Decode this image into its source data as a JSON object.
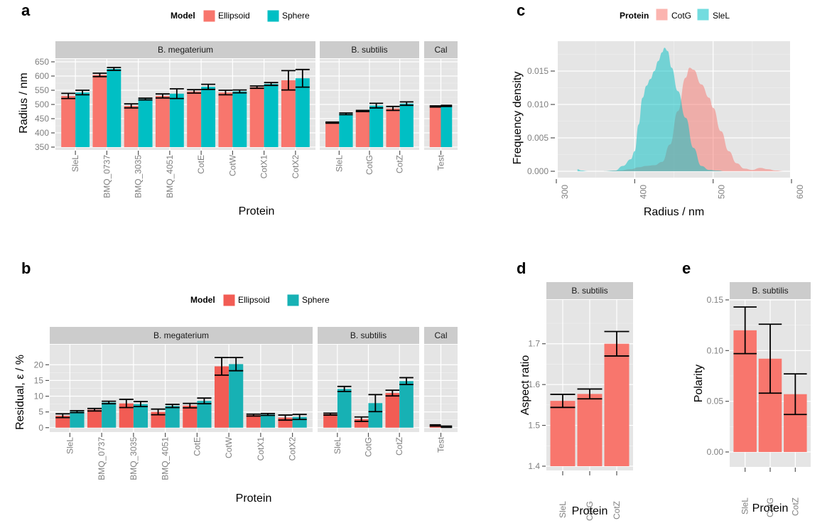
{
  "colors": {
    "ellipsoid": "#f8766d",
    "sphere": "#00bfc4",
    "ellipsoid_b": "#f25c54",
    "sphere_b": "#17b1b4",
    "panel_bg": "#e5e5e5",
    "strip_bg": "#cccccc",
    "cotg_density": "#f8766d",
    "slel_density": "#00bfc4"
  },
  "chart_data": [
    {
      "id": "a",
      "panel_label": "a",
      "type": "bar",
      "xlabel": "Protein",
      "ylabel": "Radius / nm",
      "ylim": [
        350,
        660
      ],
      "yticks": [
        350,
        400,
        450,
        500,
        550,
        600,
        650
      ],
      "legend": {
        "title": "Model",
        "entries": [
          "Ellipsoid",
          "Sphere"
        ],
        "position": "top"
      },
      "facets": [
        {
          "label": "B. megaterium",
          "categories": [
            "SleL",
            "BMQ_0737",
            "BMQ_3035",
            "BMQ_4051",
            "CotE",
            "CotW",
            "CotX1",
            "CotX2"
          ],
          "series": [
            {
              "name": "Ellipsoid",
              "values": [
                530,
                604,
                495,
                530,
                546,
                542,
                561,
                585
              ],
              "err": [
                9,
                6,
                7,
                7,
                6,
                8,
                4,
                34
              ]
            },
            {
              "name": "Sphere",
              "values": [
                542,
                625,
                519,
                538,
                562,
                546,
                572,
                592
              ],
              "err": [
                8,
                5,
                3,
                17,
                9,
                5,
                5,
                31
              ]
            }
          ]
        },
        {
          "label": "B. subtilis",
          "categories": [
            "SleL",
            "CotG",
            "CotZ"
          ],
          "series": [
            {
              "name": "Ellipsoid",
              "values": [
                436,
                477,
                486
              ],
              "err": [
                2,
                2,
                7
              ]
            },
            {
              "name": "Sphere",
              "values": [
                467,
                496,
                503
              ],
              "err": [
                3,
                8,
                6
              ]
            }
          ]
        },
        {
          "label": "Cal",
          "categories": [
            "Test"
          ],
          "series": [
            {
              "name": "Ellipsoid",
              "values": [
                493
              ],
              "err": [
                2
              ]
            },
            {
              "name": "Sphere",
              "values": [
                495
              ],
              "err": [
                2
              ]
            }
          ]
        }
      ]
    },
    {
      "id": "b",
      "panel_label": "b",
      "type": "bar",
      "xlabel": "Protein",
      "ylabel": "Residual, ε / %",
      "ylim": [
        -0.5,
        23
      ],
      "yticks": [
        0,
        5,
        10,
        15,
        20
      ],
      "legend": {
        "title": "Model",
        "entries": [
          "Ellipsoid",
          "Sphere"
        ],
        "position": "top"
      },
      "facets": [
        {
          "label": "B. megaterium",
          "categories": [
            "SleL",
            "BMQ_0737",
            "BMQ_3035",
            "BMQ_4051",
            "CotE",
            "CotW",
            "CotX1",
            "CotX2"
          ],
          "series": [
            {
              "name": "Ellipsoid",
              "values": [
                3.8,
                5.7,
                7.7,
                5.0,
                7.0,
                19.5,
                4.0,
                3.2
              ],
              "err": [
                0.6,
                0.4,
                1.3,
                0.9,
                0.7,
                2.8,
                0.3,
                0.8
              ]
            },
            {
              "name": "Sphere",
              "values": [
                5.1,
                8.0,
                7.5,
                6.9,
                8.5,
                20.2,
                4.2,
                3.4
              ],
              "err": [
                0.3,
                0.4,
                0.8,
                0.5,
                0.9,
                2.1,
                0.3,
                0.8
              ]
            }
          ]
        },
        {
          "label": "B. subtilis",
          "categories": [
            "SleL",
            "CotG",
            "CotZ"
          ],
          "series": [
            {
              "name": "Ellipsoid",
              "values": [
                4.3,
                2.7,
                11.0
              ],
              "err": [
                0.3,
                0.7,
                0.9
              ]
            },
            {
              "name": "Sphere",
              "values": [
                12.3,
                7.8,
                14.8
              ],
              "err": [
                0.8,
                2.7,
                1.1
              ]
            }
          ]
        },
        {
          "label": "Cal",
          "categories": [
            "Test"
          ],
          "series": [
            {
              "name": "Ellipsoid",
              "values": [
                0.7
              ],
              "err": [
                0.2
              ]
            },
            {
              "name": "Sphere",
              "values": [
                0.3
              ],
              "err": [
                0.2
              ]
            }
          ]
        }
      ]
    },
    {
      "id": "c",
      "panel_label": "c",
      "type": "area",
      "title": "",
      "xlabel": "Radius / nm",
      "ylabel": "Frequency density",
      "xlim": [
        300,
        600
      ],
      "ylim": [
        0,
        0.019
      ],
      "xticks": [
        300,
        400,
        500,
        600
      ],
      "yticks": [
        0.0,
        0.005,
        0.01,
        0.015
      ],
      "ytick_labels": [
        "0.000",
        "0.005",
        "0.010",
        "0.015"
      ],
      "legend": {
        "title": "Protein",
        "entries": [
          "CotG",
          "SleL"
        ],
        "position": "top"
      },
      "series": [
        {
          "name": "CotG",
          "x": [
            360,
            380,
            395,
            405,
            415,
            425,
            435,
            445,
            455,
            465,
            470,
            475,
            485,
            495,
            500,
            510,
            520,
            530,
            540,
            550,
            560,
            570,
            580,
            590
          ],
          "y": [
            0,
            0.0001,
            0.0003,
            0.0006,
            0.0008,
            0.0009,
            0.0014,
            0.004,
            0.009,
            0.014,
            0.0155,
            0.0152,
            0.013,
            0.011,
            0.0095,
            0.006,
            0.003,
            0.0012,
            0.0004,
            0.0002,
            0.0005,
            0.0003,
            0.0001,
            0
          ]
        },
        {
          "name": "SleL",
          "x": [
            327,
            332,
            340,
            360,
            375,
            385,
            395,
            400,
            405,
            410,
            415,
            420,
            425,
            430,
            435,
            438,
            442,
            447,
            455,
            465,
            475,
            485,
            495,
            505,
            515
          ],
          "y": [
            0.0003,
            0.0001,
            0,
            0,
            0.0001,
            0.0008,
            0.0018,
            0.003,
            0.007,
            0.011,
            0.0128,
            0.0138,
            0.015,
            0.0165,
            0.0178,
            0.0185,
            0.018,
            0.0155,
            0.012,
            0.008,
            0.0035,
            0.0008,
            0.0002,
            0.0001,
            0
          ]
        }
      ]
    },
    {
      "id": "d",
      "panel_label": "d",
      "type": "bar",
      "xlabel": "Protein",
      "ylabel": "Aspect ratio",
      "ylim": [
        1.4,
        1.75
      ],
      "yticks": [
        1.4,
        1.5,
        1.6,
        1.7
      ],
      "ytick_labels": [
        "1.4",
        "1.5",
        "1.6",
        "1.7"
      ],
      "facets": [
        {
          "label": "B. subtilis",
          "categories": [
            "SleL",
            "CotG",
            "CotZ"
          ],
          "series": [
            {
              "name": "Aspect ratio",
              "values": [
                1.56,
                1.577,
                1.7
              ],
              "err": [
                0.016,
                0.012,
                0.03
              ]
            }
          ]
        }
      ]
    },
    {
      "id": "e",
      "panel_label": "e",
      "type": "bar",
      "xlabel": "Protein",
      "ylabel": "Polarity",
      "ylim": [
        -0.007,
        0.15
      ],
      "yticks": [
        0.0,
        0.05,
        0.1,
        0.15
      ],
      "ytick_labels": [
        "0.00",
        "0.05",
        "0.10",
        "0.15"
      ],
      "facets": [
        {
          "label": "B. subtilis",
          "categories": [
            "SleL",
            "CotG",
            "CotZ"
          ],
          "series": [
            {
              "name": "Polarity",
              "values": [
                0.12,
                0.092,
                0.057
              ],
              "err": [
                0.023,
                0.034,
                0.02
              ]
            }
          ]
        }
      ]
    }
  ]
}
